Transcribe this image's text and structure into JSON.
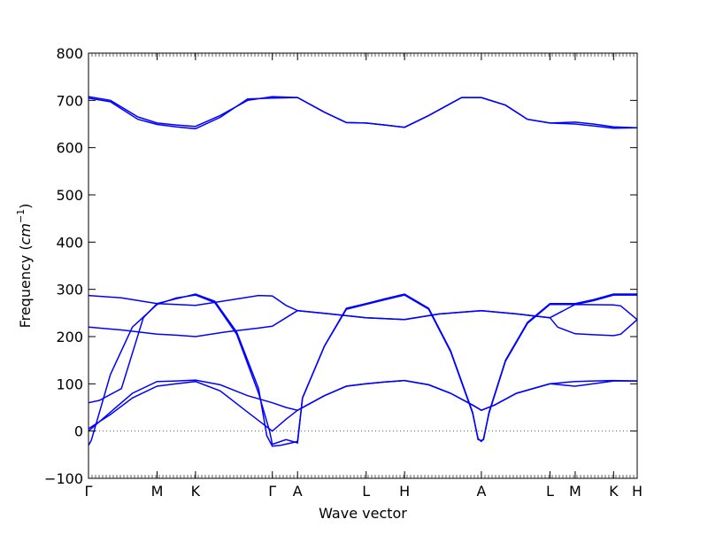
{
  "chart_data": {
    "type": "line",
    "title": "",
    "xlabel": "Wave vector",
    "ylabel": "Frequency",
    "ylabel_unit": "cm",
    "ylabel_unit_exp": "−1",
    "ylim": [
      -100,
      800
    ],
    "yticks": [
      -100,
      0,
      100,
      200,
      300,
      400,
      500,
      600,
      700,
      800
    ],
    "zero_line": true,
    "line_color": "#0000ff",
    "xticks": [
      {
        "label": "Γ",
        "pos": 0.0
      },
      {
        "label": "M",
        "pos": 0.125
      },
      {
        "label": "K",
        "pos": 0.195
      },
      {
        "label": "Γ",
        "pos": 0.335
      },
      {
        "label": "A",
        "pos": 0.381
      },
      {
        "label": "L",
        "pos": 0.506
      },
      {
        "label": "H",
        "pos": 0.576
      },
      {
        "label": "A",
        "pos": 0.716
      },
      {
        "label": "L",
        "pos": 0.841
      },
      {
        "label": "M",
        "pos": 0.887
      },
      {
        "label": "K",
        "pos": 0.957
      },
      {
        "label": "H",
        "pos": 1.0
      }
    ],
    "series": [
      {
        "values": [
          [
            0,
            708
          ],
          [
            0.04,
            700
          ],
          [
            0.09,
            665
          ],
          [
            0.125,
            652
          ],
          [
            0.16,
            648
          ],
          [
            0.195,
            645
          ],
          [
            0.24,
            668
          ],
          [
            0.29,
            700
          ],
          [
            0.335,
            708
          ],
          [
            0.381,
            706
          ],
          [
            0.43,
            675
          ],
          [
            0.47,
            653
          ],
          [
            0.506,
            652
          ],
          [
            0.54,
            648
          ],
          [
            0.576,
            643
          ],
          [
            0.62,
            668
          ],
          [
            0.68,
            706
          ],
          [
            0.716,
            706
          ],
          [
            0.76,
            690
          ],
          [
            0.8,
            660
          ],
          [
            0.841,
            652
          ],
          [
            0.887,
            654
          ],
          [
            0.92,
            650
          ],
          [
            0.957,
            644
          ],
          [
            1.0,
            642
          ]
        ]
      },
      {
        "values": [
          [
            0,
            705
          ],
          [
            0.04,
            697
          ],
          [
            0.09,
            660
          ],
          [
            0.125,
            649
          ],
          [
            0.16,
            644
          ],
          [
            0.195,
            640
          ],
          [
            0.24,
            664
          ],
          [
            0.29,
            703
          ],
          [
            0.335,
            705
          ],
          [
            0.381,
            706
          ],
          [
            0.43,
            675
          ],
          [
            0.47,
            653
          ],
          [
            0.506,
            652
          ],
          [
            0.54,
            648
          ],
          [
            0.576,
            643
          ],
          [
            0.62,
            668
          ],
          [
            0.68,
            706
          ],
          [
            0.716,
            706
          ],
          [
            0.76,
            690
          ],
          [
            0.8,
            660
          ],
          [
            0.841,
            652
          ],
          [
            0.887,
            650
          ],
          [
            0.92,
            646
          ],
          [
            0.957,
            641
          ],
          [
            1.0,
            642
          ]
        ]
      },
      {
        "values": [
          [
            0,
            287
          ],
          [
            0.06,
            282
          ],
          [
            0.125,
            270
          ],
          [
            0.16,
            268
          ],
          [
            0.195,
            266
          ],
          [
            0.25,
            276
          ],
          [
            0.31,
            287
          ],
          [
            0.335,
            286
          ],
          [
            0.36,
            266
          ],
          [
            0.381,
            255
          ],
          [
            0.44,
            248
          ],
          [
            0.506,
            240
          ],
          [
            0.576,
            236
          ],
          [
            0.64,
            248
          ],
          [
            0.716,
            255
          ],
          [
            0.78,
            248
          ],
          [
            0.841,
            240
          ],
          [
            0.887,
            268
          ],
          [
            0.957,
            267
          ],
          [
            0.97,
            265
          ],
          [
            1.0,
            236
          ]
        ]
      },
      {
        "values": [
          [
            0,
            220
          ],
          [
            0.06,
            214
          ],
          [
            0.125,
            205
          ],
          [
            0.16,
            203
          ],
          [
            0.195,
            200
          ],
          [
            0.25,
            210
          ],
          [
            0.31,
            218
          ],
          [
            0.335,
            222
          ],
          [
            0.36,
            240
          ],
          [
            0.381,
            255
          ],
          [
            0.44,
            248
          ],
          [
            0.506,
            240
          ],
          [
            0.576,
            236
          ],
          [
            0.64,
            248
          ],
          [
            0.716,
            255
          ],
          [
            0.78,
            248
          ],
          [
            0.841,
            240
          ],
          [
            0.855,
            220
          ],
          [
            0.887,
            206
          ],
          [
            0.92,
            204
          ],
          [
            0.957,
            202
          ],
          [
            0.97,
            205
          ],
          [
            1.0,
            236
          ]
        ]
      },
      {
        "values": [
          [
            0,
            60
          ],
          [
            0.02,
            65
          ],
          [
            0.06,
            90
          ],
          [
            0.1,
            240
          ],
          [
            0.125,
            270
          ],
          [
            0.16,
            280
          ],
          [
            0.195,
            290
          ],
          [
            0.23,
            275
          ],
          [
            0.27,
            210
          ],
          [
            0.31,
            90
          ],
          [
            0.325,
            -10
          ],
          [
            0.335,
            -32
          ],
          [
            0.35,
            -30
          ],
          [
            0.37,
            -25
          ],
          [
            0.381,
            -22
          ],
          [
            0.39,
            70
          ],
          [
            0.43,
            180
          ],
          [
            0.47,
            260
          ],
          [
            0.506,
            270
          ],
          [
            0.54,
            280
          ],
          [
            0.576,
            290
          ],
          [
            0.62,
            260
          ],
          [
            0.66,
            170
          ],
          [
            0.7,
            40
          ],
          [
            0.71,
            -18
          ],
          [
            0.716,
            -20
          ],
          [
            0.72,
            -18
          ],
          [
            0.73,
            40
          ],
          [
            0.76,
            150
          ],
          [
            0.8,
            230
          ],
          [
            0.841,
            270
          ],
          [
            0.887,
            270
          ],
          [
            0.92,
            278
          ],
          [
            0.957,
            290
          ],
          [
            1.0,
            290
          ]
        ]
      },
      {
        "values": [
          [
            0,
            -30
          ],
          [
            0.005,
            -20
          ],
          [
            0.04,
            120
          ],
          [
            0.08,
            220
          ],
          [
            0.125,
            268
          ],
          [
            0.16,
            282
          ],
          [
            0.195,
            288
          ],
          [
            0.23,
            272
          ],
          [
            0.27,
            205
          ],
          [
            0.31,
            80
          ],
          [
            0.33,
            0
          ],
          [
            0.335,
            -28
          ],
          [
            0.36,
            -18
          ],
          [
            0.381,
            -25
          ],
          [
            0.39,
            70
          ],
          [
            0.43,
            180
          ],
          [
            0.47,
            258
          ],
          [
            0.506,
            268
          ],
          [
            0.54,
            278
          ],
          [
            0.576,
            288
          ],
          [
            0.62,
            258
          ],
          [
            0.66,
            168
          ],
          [
            0.7,
            38
          ],
          [
            0.71,
            -16
          ],
          [
            0.716,
            -22
          ],
          [
            0.72,
            -16
          ],
          [
            0.73,
            38
          ],
          [
            0.76,
            148
          ],
          [
            0.8,
            228
          ],
          [
            0.841,
            268
          ],
          [
            0.887,
            268
          ],
          [
            0.92,
            276
          ],
          [
            0.957,
            288
          ],
          [
            1.0,
            288
          ]
        ]
      },
      {
        "values": [
          [
            0,
            0
          ],
          [
            0.04,
            40
          ],
          [
            0.08,
            80
          ],
          [
            0.125,
            105
          ],
          [
            0.16,
            106
          ],
          [
            0.195,
            108
          ],
          [
            0.24,
            98
          ],
          [
            0.29,
            75
          ],
          [
            0.335,
            60
          ],
          [
            0.36,
            50
          ],
          [
            0.381,
            44
          ],
          [
            0.43,
            75
          ],
          [
            0.47,
            95
          ],
          [
            0.506,
            100
          ],
          [
            0.54,
            104
          ],
          [
            0.576,
            107
          ],
          [
            0.62,
            98
          ],
          [
            0.66,
            80
          ],
          [
            0.7,
            55
          ],
          [
            0.716,
            44
          ],
          [
            0.74,
            55
          ],
          [
            0.78,
            80
          ],
          [
            0.841,
            100
          ],
          [
            0.887,
            105
          ],
          [
            0.92,
            106
          ],
          [
            0.957,
            107
          ],
          [
            1.0,
            106
          ]
        ]
      },
      {
        "values": [
          [
            0,
            5
          ],
          [
            0.04,
            35
          ],
          [
            0.08,
            70
          ],
          [
            0.125,
            95
          ],
          [
            0.16,
            100
          ],
          [
            0.195,
            105
          ],
          [
            0.24,
            85
          ],
          [
            0.29,
            40
          ],
          [
            0.335,
            0
          ],
          [
            0.36,
            25
          ],
          [
            0.381,
            44
          ],
          [
            0.43,
            75
          ],
          [
            0.47,
            95
          ],
          [
            0.506,
            100
          ],
          [
            0.54,
            104
          ],
          [
            0.576,
            107
          ],
          [
            0.62,
            98
          ],
          [
            0.66,
            80
          ],
          [
            0.7,
            55
          ],
          [
            0.716,
            44
          ],
          [
            0.74,
            55
          ],
          [
            0.78,
            80
          ],
          [
            0.841,
            100
          ],
          [
            0.887,
            95
          ],
          [
            0.92,
            100
          ],
          [
            0.957,
            106
          ],
          [
            1.0,
            106
          ]
        ]
      }
    ]
  }
}
